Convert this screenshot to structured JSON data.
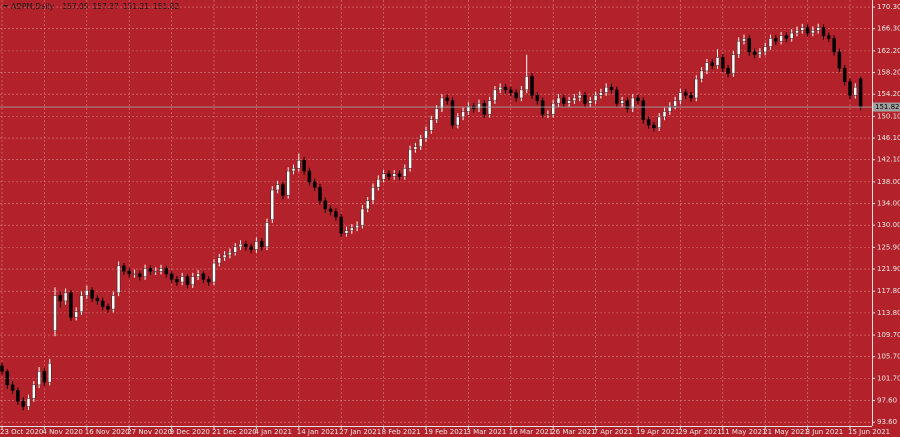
{
  "chart_data": {
    "type": "candlestick",
    "symbol": "ADPM,Daily",
    "background": "#b3222a",
    "grid": true,
    "grid_color": "#d58083",
    "up_color": "#ffffff",
    "down_color": "#000000",
    "ylim": [
      92.9,
      171.6
    ],
    "yticks": [
      {
        "value": 170.3,
        "label": "170.30"
      },
      {
        "value": 166.3,
        "label": "166.30"
      },
      {
        "value": 162.2,
        "label": "162.20"
      },
      {
        "value": 158.2,
        "label": "158.20"
      },
      {
        "value": 154.2,
        "label": "154.20"
      },
      {
        "value": 150.1,
        "label": "150.10"
      },
      {
        "value": 146.1,
        "label": "146.10"
      },
      {
        "value": 142.1,
        "label": "142.10"
      },
      {
        "value": 138,
        "label": "138.00"
      },
      {
        "value": 134,
        "label": "134.00"
      },
      {
        "value": 130,
        "label": "130.00"
      },
      {
        "value": 125.9,
        "label": "125.90"
      },
      {
        "value": 121.9,
        "label": "121.90"
      },
      {
        "value": 117.8,
        "label": "117.80"
      },
      {
        "value": 113.8,
        "label": "113.80"
      },
      {
        "value": 109.7,
        "label": "109.70"
      },
      {
        "value": 105.7,
        "label": "105.70"
      },
      {
        "value": 101.7,
        "label": "101.70"
      },
      {
        "value": 97.6,
        "label": "97.60"
      },
      {
        "value": 93.6,
        "label": "93.60"
      }
    ],
    "categories": [
      "23 Oct 2020",
      null,
      null,
      null,
      null,
      null,
      null,
      null,
      "4 Nov 2020",
      null,
      null,
      null,
      null,
      null,
      null,
      null,
      "16 Nov 2020",
      null,
      null,
      null,
      null,
      null,
      null,
      null,
      "27 Nov 2020",
      null,
      null,
      null,
      null,
      null,
      null,
      null,
      "9 Dec 2020",
      null,
      null,
      null,
      null,
      null,
      null,
      null,
      "21 Dec 2020",
      null,
      null,
      null,
      null,
      null,
      null,
      null,
      "4 Jan 2021",
      null,
      null,
      null,
      null,
      null,
      null,
      null,
      "14 Jan 2021",
      null,
      null,
      null,
      null,
      null,
      null,
      null,
      "27 Jan 2021",
      null,
      null,
      null,
      null,
      null,
      null,
      null,
      "8 Feb 2021",
      null,
      null,
      null,
      null,
      null,
      null,
      null,
      "19 Feb 2021",
      null,
      null,
      null,
      null,
      null,
      null,
      null,
      "3 Mar 2021",
      null,
      null,
      null,
      null,
      null,
      null,
      null,
      "16 Mar 2021",
      null,
      null,
      null,
      null,
      null,
      null,
      null,
      "26 Mar 2021",
      null,
      null,
      null,
      null,
      null,
      null,
      null,
      "7 Apr 2021",
      null,
      null,
      null,
      null,
      null,
      null,
      null,
      "19 Apr 2021",
      null,
      null,
      null,
      null,
      null,
      null,
      null,
      "29 Apr 2021",
      null,
      null,
      null,
      null,
      null,
      null,
      null,
      "11 May 2021",
      null,
      null,
      null,
      null,
      null,
      null,
      null,
      "21 May 2021",
      null,
      null,
      null,
      null,
      null,
      null,
      null,
      "3 Jun 2021",
      null,
      null,
      null,
      null,
      null,
      null,
      null,
      "15 Jun 2021",
      null,
      null
    ],
    "candles": [
      [
        104,
        104.6,
        102.4,
        103
      ],
      [
        103,
        103.4,
        99.8,
        100.5
      ],
      [
        100.5,
        101.2,
        98.8,
        99.5
      ],
      [
        99.5,
        100,
        96.8,
        97.5
      ],
      [
        97.5,
        98.2,
        95.8,
        96.5
      ],
      [
        96.5,
        98.7,
        95.9,
        98
      ],
      [
        98,
        101.2,
        97.4,
        100.5
      ],
      [
        100.5,
        103.8,
        99.9,
        103
      ],
      [
        103,
        103.6,
        100.3,
        101
      ],
      [
        101,
        105.3,
        100.4,
        104.5
      ],
      [
        110.5,
        118.5,
        109.5,
        117
      ],
      [
        117,
        117.8,
        114.8,
        116
      ],
      [
        116,
        118.3,
        115.3,
        117.5
      ],
      [
        117.5,
        118,
        112.3,
        113
      ],
      [
        113,
        114.8,
        112.4,
        114
      ],
      [
        114,
        117.7,
        113.4,
        117
      ],
      [
        117,
        118.8,
        116.4,
        118
      ],
      [
        118,
        118.5,
        115.8,
        116.5
      ],
      [
        116.5,
        117.1,
        115.3,
        116
      ],
      [
        116,
        116.6,
        114.3,
        115
      ],
      [
        115,
        115.5,
        113.8,
        114.5
      ],
      [
        114.5,
        117.7,
        113.9,
        117
      ],
      [
        117.5,
        123.3,
        116.9,
        122.5
      ],
      [
        122.5,
        123,
        120.8,
        121.5
      ],
      [
        121.5,
        122.1,
        120.3,
        121
      ],
      [
        121,
        121.8,
        120.3,
        121
      ],
      [
        121,
        121.6,
        119.8,
        120.5
      ],
      [
        120.5,
        122.7,
        119.9,
        122
      ],
      [
        122,
        122.6,
        120.8,
        121.5
      ],
      [
        121.5,
        122.2,
        120.8,
        121.5
      ],
      [
        121.5,
        122.7,
        120.9,
        122
      ],
      [
        122,
        122.5,
        120.3,
        121
      ],
      [
        121,
        121.5,
        119.3,
        120
      ],
      [
        120,
        120.6,
        118.8,
        119.5
      ],
      [
        119.5,
        121.2,
        118.9,
        120.5
      ],
      [
        120.5,
        121,
        118.3,
        119
      ],
      [
        119,
        121.2,
        118.4,
        120.5
      ],
      [
        120.5,
        121.7,
        119.9,
        121
      ],
      [
        121,
        121.5,
        119.3,
        120
      ],
      [
        120,
        120.6,
        118.8,
        119.5
      ],
      [
        119.5,
        123.7,
        118.9,
        123
      ],
      [
        123,
        124.7,
        122.4,
        124
      ],
      [
        124,
        125.2,
        123.4,
        124.5
      ],
      [
        124.5,
        125.7,
        123.9,
        125
      ],
      [
        125,
        126.7,
        124.4,
        126
      ],
      [
        126,
        127.2,
        125.4,
        126.5
      ],
      [
        126.5,
        127.1,
        125.3,
        126
      ],
      [
        126,
        126.6,
        124.8,
        125.5
      ],
      [
        125.5,
        127.7,
        124.9,
        127
      ],
      [
        127,
        127.6,
        125.3,
        126
      ],
      [
        126,
        131.2,
        125.4,
        130.5
      ],
      [
        131,
        137.2,
        130.4,
        136.5
      ],
      [
        136.5,
        138.2,
        135.9,
        137.5
      ],
      [
        137.5,
        138,
        134.8,
        135.5
      ],
      [
        135.5,
        140.7,
        134.9,
        140
      ],
      [
        140,
        141.2,
        139.4,
        140.5
      ],
      [
        140.5,
        143.2,
        139.9,
        142
      ],
      [
        142,
        142.6,
        139.3,
        140
      ],
      [
        140,
        140.6,
        137.3,
        138
      ],
      [
        138,
        138.6,
        136.3,
        137
      ],
      [
        137,
        137.6,
        133.8,
        134.5
      ],
      [
        134.5,
        135.1,
        132.3,
        133
      ],
      [
        133,
        133.6,
        131.8,
        132.5
      ],
      [
        132.5,
        133.1,
        130.8,
        131.5
      ],
      [
        131.5,
        132.1,
        127.8,
        128.5
      ],
      [
        128.5,
        129.7,
        127.9,
        129
      ],
      [
        129,
        130.2,
        128.4,
        129.5
      ],
      [
        129.5,
        130.7,
        128.9,
        130
      ],
      [
        130,
        133.7,
        129.4,
        133
      ],
      [
        133,
        135.2,
        132.4,
        134.5
      ],
      [
        134.5,
        137.7,
        133.9,
        137
      ],
      [
        137,
        139.2,
        136.4,
        138.5
      ],
      [
        138.5,
        140.2,
        137.9,
        139.5
      ],
      [
        139.5,
        140.1,
        138.3,
        139
      ],
      [
        139,
        140.2,
        138.4,
        139.5
      ],
      [
        139.5,
        140.1,
        138.3,
        139
      ],
      [
        139,
        141.2,
        138.4,
        140.5
      ],
      [
        140.5,
        144.7,
        139.9,
        144
      ],
      [
        144,
        145.2,
        143.4,
        144.5
      ],
      [
        144.5,
        146.7,
        143.9,
        146
      ],
      [
        146,
        148.2,
        145.4,
        147.5
      ],
      [
        147.5,
        150.2,
        146.9,
        149.5
      ],
      [
        149.5,
        152.2,
        148.9,
        151.5
      ],
      [
        151.5,
        154.2,
        150.9,
        153.5
      ],
      [
        153.5,
        154.1,
        152.3,
        153
      ],
      [
        153,
        153.6,
        147.8,
        148.5
      ],
      [
        148.5,
        150.7,
        147.9,
        150
      ],
      [
        150,
        151.7,
        149.4,
        151
      ],
      [
        151,
        152.7,
        150.4,
        152
      ],
      [
        152,
        152.6,
        150.8,
        151.5
      ],
      [
        151.5,
        153.2,
        150.9,
        152.5
      ],
      [
        152.5,
        153.1,
        149.8,
        150.5
      ],
      [
        150.5,
        153.7,
        149.9,
        153
      ],
      [
        153,
        155.7,
        152.4,
        155
      ],
      [
        155,
        156.2,
        154.4,
        155.5
      ],
      [
        155.5,
        156.1,
        154.3,
        155
      ],
      [
        155,
        155.6,
        153.8,
        154.5
      ],
      [
        154.5,
        155.1,
        152.8,
        153.5
      ],
      [
        153.5,
        155.7,
        152.9,
        155
      ],
      [
        155,
        161.5,
        154.4,
        157.5
      ],
      [
        157.5,
        158.1,
        153.3,
        154
      ],
      [
        154,
        154.6,
        152.3,
        153
      ],
      [
        153,
        153.6,
        149.8,
        150.5
      ],
      [
        150.5,
        151.2,
        149.8,
        150.5
      ],
      [
        150.5,
        153.2,
        149.9,
        152.5
      ],
      [
        152.5,
        154.2,
        151.9,
        153.5
      ],
      [
        153.5,
        154.1,
        151.8,
        152.5
      ],
      [
        152.5,
        153.7,
        151.9,
        153
      ],
      [
        153,
        154.2,
        152.4,
        153.5
      ],
      [
        153.5,
        154.7,
        152.9,
        154
      ],
      [
        154,
        154.6,
        151.8,
        152.5
      ],
      [
        152.5,
        153.7,
        151.9,
        153
      ],
      [
        153,
        154.7,
        152.4,
        154
      ],
      [
        154,
        155.2,
        153.4,
        154.5
      ],
      [
        154.5,
        156.2,
        153.9,
        155.5
      ],
      [
        155.5,
        156.1,
        154.3,
        155
      ],
      [
        155,
        155.6,
        151.8,
        152.5
      ],
      [
        152.5,
        153.7,
        151.9,
        153
      ],
      [
        153,
        153.6,
        150.8,
        151.5
      ],
      [
        151.5,
        154.2,
        150.9,
        153.5
      ],
      [
        153.5,
        154.1,
        152.3,
        153
      ],
      [
        153,
        153.6,
        148.8,
        149.5
      ],
      [
        149.5,
        150.1,
        147.8,
        148.5
      ],
      [
        148.5,
        149.1,
        147.3,
        148
      ],
      [
        148,
        150.7,
        147.4,
        150
      ],
      [
        150,
        151.7,
        149.4,
        151
      ],
      [
        151,
        152.7,
        150.4,
        152
      ],
      [
        152,
        153.7,
        151.4,
        153
      ],
      [
        153,
        155.2,
        152.4,
        154.5
      ],
      [
        154.5,
        155.1,
        153.3,
        154
      ],
      [
        154,
        154.6,
        152.8,
        153.5
      ],
      [
        153.5,
        157.7,
        152.9,
        157
      ],
      [
        157,
        159.2,
        156.4,
        158.5
      ],
      [
        158.5,
        160.7,
        157.9,
        160
      ],
      [
        160,
        160.6,
        158.8,
        159.5
      ],
      [
        159.5,
        162.5,
        158.9,
        161
      ],
      [
        161,
        161.6,
        158.3,
        159
      ],
      [
        159,
        159.6,
        157.3,
        158
      ],
      [
        158,
        162.2,
        157.4,
        161.5
      ],
      [
        161.5,
        164.7,
        160.9,
        164
      ],
      [
        164,
        165.2,
        163.4,
        164.5
      ],
      [
        164.5,
        165.1,
        161.3,
        162
      ],
      [
        162,
        162.6,
        160.8,
        161.5
      ],
      [
        161.5,
        162.7,
        160.9,
        162
      ],
      [
        162,
        163.7,
        161.4,
        163
      ],
      [
        163,
        165.2,
        162.4,
        164.5
      ],
      [
        164.5,
        165.1,
        163.3,
        164
      ],
      [
        164,
        165.7,
        163.4,
        165
      ],
      [
        165,
        165.6,
        163.8,
        164.5
      ],
      [
        164.5,
        166.2,
        163.9,
        165.5
      ],
      [
        165.5,
        166.7,
        164.9,
        166
      ],
      [
        166,
        167.2,
        165.4,
        166.5
      ],
      [
        166.5,
        167.1,
        164.8,
        165.5
      ],
      [
        165.5,
        166.7,
        164.9,
        166
      ],
      [
        166,
        167.2,
        165.4,
        166.5
      ],
      [
        166.5,
        167.1,
        164.3,
        165
      ],
      [
        165,
        165.6,
        163.8,
        164.5
      ],
      [
        164.5,
        165.1,
        161.3,
        162
      ],
      [
        162,
        162.6,
        158.3,
        159
      ],
      [
        159,
        159.6,
        155.8,
        156.5
      ],
      [
        156.5,
        157.1,
        153.3,
        154
      ],
      [
        154,
        156.2,
        153.4,
        155.5
      ],
      [
        157.05,
        157.37,
        151.21,
        151.82
      ]
    ]
  }
}
